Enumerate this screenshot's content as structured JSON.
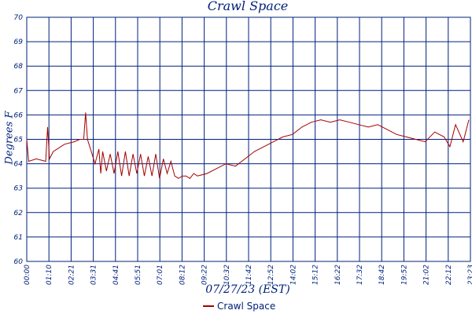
{
  "chart_data": {
    "type": "line",
    "title": "Crawl Space",
    "xlabel": "07/27/23 (EST)",
    "ylabel": "Degrees F",
    "ylim": [
      60,
      70
    ],
    "yticks": [
      "60",
      "61",
      "62",
      "63",
      "64",
      "65",
      "66",
      "67",
      "68",
      "69",
      "70"
    ],
    "xticks": [
      "00:00",
      "01:10",
      "02:21",
      "03:31",
      "04:41",
      "05:51",
      "07:01",
      "08:12",
      "09:22",
      "10:32",
      "11:42",
      "12:52",
      "14:02",
      "15:12",
      "16:22",
      "17:32",
      "18:42",
      "19:52",
      "21:02",
      "22:12",
      "23:23"
    ],
    "grid": true,
    "legend_position": "bottom-center",
    "colors": {
      "line": "#a40000",
      "grid": "#00207a",
      "text": "#00207a"
    },
    "series": [
      {
        "name": "Crawl Space",
        "x": [
          0,
          0.1,
          0.5,
          1.0,
          1.1,
          1.2,
          1.4,
          2.0,
          2.5,
          2.8,
          3.0,
          3.1,
          3.2,
          3.4,
          3.6,
          3.8,
          3.9,
          4.0,
          4.2,
          4.4,
          4.6,
          4.8,
          5.0,
          5.2,
          5.4,
          5.6,
          5.8,
          6.0,
          6.2,
          6.4,
          6.6,
          6.8,
          7.0,
          7.2,
          7.4,
          7.6,
          7.8,
          8.0,
          8.2,
          8.4,
          8.6,
          8.8,
          9.0,
          9.5,
          10.0,
          10.5,
          11.0,
          11.5,
          12.0,
          12.5,
          13.0,
          13.5,
          14.0,
          14.5,
          15.0,
          15.5,
          16.0,
          16.5,
          17.0,
          17.5,
          18.0,
          18.5,
          19.0,
          19.5,
          20.0,
          20.5,
          21.0,
          21.5,
          22.0,
          22.3,
          22.6,
          23.0,
          23.3
        ],
        "y": [
          65.0,
          64.1,
          64.2,
          64.1,
          65.5,
          64.2,
          64.5,
          64.8,
          64.9,
          65.0,
          65.0,
          66.1,
          65.0,
          64.5,
          64.0,
          64.6,
          63.6,
          64.5,
          63.7,
          64.4,
          63.6,
          64.5,
          63.5,
          64.5,
          63.5,
          64.4,
          63.6,
          64.4,
          63.5,
          64.3,
          63.5,
          64.4,
          63.4,
          64.2,
          63.6,
          64.1,
          63.5,
          63.4,
          63.5,
          63.5,
          63.4,
          63.6,
          63.5,
          63.6,
          63.8,
          64.0,
          63.9,
          64.2,
          64.5,
          64.7,
          64.9,
          65.1,
          65.2,
          65.5,
          65.7,
          65.8,
          65.7,
          65.8,
          65.7,
          65.6,
          65.5,
          65.6,
          65.4,
          65.2,
          65.1,
          65.0,
          64.9,
          65.3,
          65.1,
          64.7,
          65.6,
          64.9,
          65.8
        ]
      }
    ]
  }
}
